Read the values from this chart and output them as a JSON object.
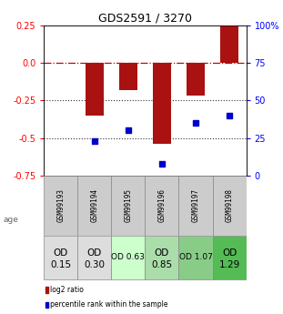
{
  "title": "GDS2591 / 3270",
  "samples": [
    "GSM99193",
    "GSM99194",
    "GSM99195",
    "GSM99196",
    "GSM99197",
    "GSM99198"
  ],
  "log2_ratio": [
    0.0,
    -0.35,
    -0.18,
    -0.54,
    -0.22,
    0.25
  ],
  "percentile_rank": [
    null,
    23,
    30,
    8,
    35,
    40
  ],
  "ylim": [
    -0.75,
    0.25
  ],
  "y_left_ticks": [
    0.25,
    0.0,
    -0.25,
    -0.5,
    -0.75
  ],
  "y_right_ticks": [
    100,
    75,
    50,
    25,
    0
  ],
  "bar_color": "#aa1111",
  "dot_color": "#0000cc",
  "hline_color": "#cc0000",
  "dotline_color": "#333333",
  "age_labels_line1": [
    "OD",
    "OD",
    "OD 0.63",
    "OD",
    "OD 1.07",
    "OD"
  ],
  "age_labels_line2": [
    "0.15",
    "0.30",
    "",
    "0.85",
    "",
    "1.29"
  ],
  "age_bg_colors": [
    "#dddddd",
    "#dddddd",
    "#ccffcc",
    "#aaddaa",
    "#88cc88",
    "#55bb55"
  ],
  "legend_red": "log2 ratio",
  "legend_blue": "percentile rank within the sample",
  "background_color": "#ffffff"
}
